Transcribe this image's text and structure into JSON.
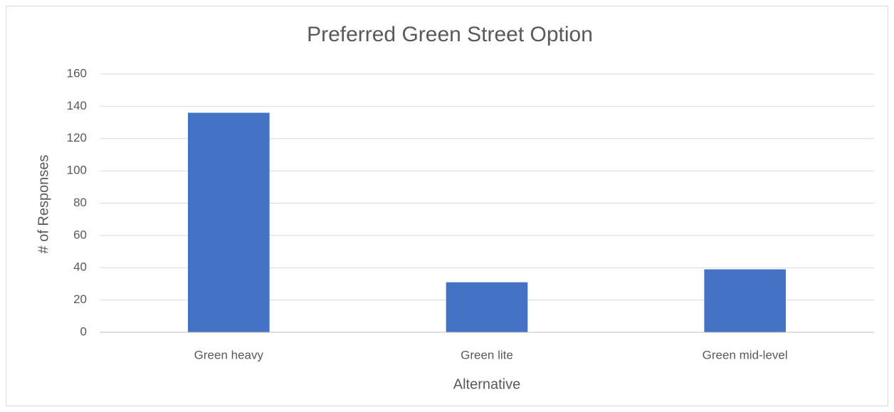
{
  "chart_data": {
    "type": "bar",
    "title": "Preferred Green Street Option",
    "x_label": "Alternative",
    "y_label": "# of Responses",
    "categories": [
      "Green heavy",
      "Green lite",
      "Green mid-level"
    ],
    "values": [
      136,
      31,
      39
    ],
    "color": "#4472c4",
    "ylim": [
      0,
      160
    ],
    "yticks": [
      0,
      20,
      40,
      60,
      80,
      100,
      120,
      140,
      160
    ],
    "grid": true
  }
}
